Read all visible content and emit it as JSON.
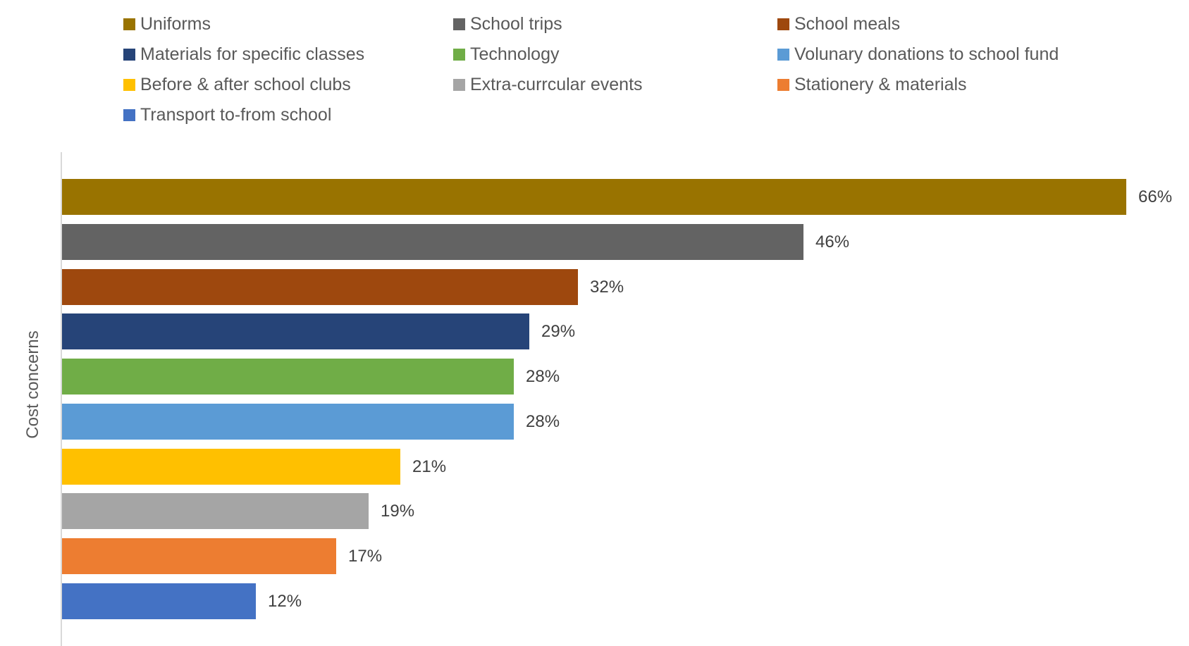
{
  "chart_data": {
    "type": "bar",
    "orientation": "horizontal",
    "title": "",
    "xlabel": "",
    "ylabel": "Cost concerns",
    "categories": [
      "Uniforms",
      "School trips",
      "School meals",
      "Materials for specific classes",
      "Technology",
      "Volunary donations to school fund",
      "Before & after school clubs",
      "Extra-currcular events",
      "Stationery & materials",
      "Transport to-from school"
    ],
    "values": [
      66,
      46,
      32,
      29,
      28,
      28,
      21,
      19,
      17,
      12
    ],
    "data_labels": [
      "66%",
      "46%",
      "32%",
      "29%",
      "28%",
      "28%",
      "21%",
      "19%",
      "17%",
      "12%"
    ],
    "value_unit": "%",
    "xlim": [
      0,
      66
    ],
    "grid": false,
    "legend_position": "top",
    "colors": [
      "#997300",
      "#636363",
      "#9E480E",
      "#264478",
      "#70AD47",
      "#5B9BD5",
      "#FFC000",
      "#A5A5A5",
      "#ED7D31",
      "#4472C4"
    ],
    "axis_line_color": "#D9D9D9",
    "data_label_color": "#404040",
    "legend_text_color": "#595959"
  }
}
